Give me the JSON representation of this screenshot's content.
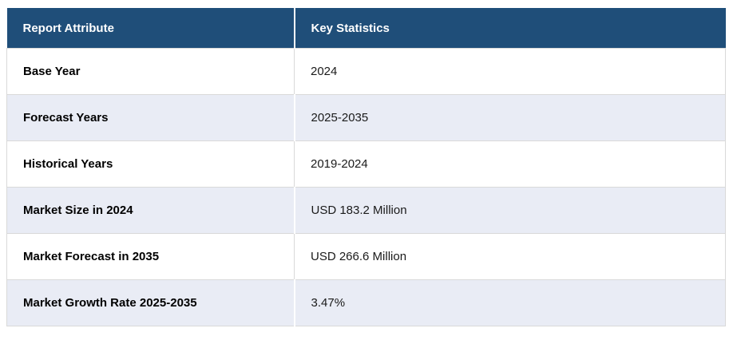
{
  "table": {
    "columns": [
      {
        "label": "Report Attribute"
      },
      {
        "label": "Key Statistics"
      }
    ],
    "rows": [
      {
        "attribute": "Base Year",
        "value": "2024"
      },
      {
        "attribute": "Forecast Years",
        "value": "2025-2035"
      },
      {
        "attribute": "Historical Years",
        "value": "2019-2024"
      },
      {
        "attribute": "Market Size in 2024",
        "value": "USD 183.2 Million"
      },
      {
        "attribute": "Market Forecast in 2035",
        "value": "USD 266.6 Million"
      },
      {
        "attribute": "Market Growth Rate 2025-2035",
        "value": "3.47%"
      }
    ],
    "colors": {
      "header_bg": "#1f4e79",
      "header_text": "#ffffff",
      "row_bg": "#ffffff",
      "row_alt_bg": "#e9ecf5",
      "border": "#d9d9d9",
      "attribute_text": "#000000",
      "value_text": "#1a1a1a"
    }
  },
  "chart_data": {
    "type": "table",
    "title": "Report Attribute / Key Statistics",
    "columns": [
      "Report Attribute",
      "Key Statistics"
    ],
    "rows": [
      [
        "Base Year",
        "2024"
      ],
      [
        "Forecast Years",
        "2025-2035"
      ],
      [
        "Historical Years",
        "2019-2024"
      ],
      [
        "Market Size in 2024",
        "USD 183.2 Million"
      ],
      [
        "Market Forecast in 2035",
        "USD 266.6 Million"
      ],
      [
        "Market Growth Rate 2025-2035",
        "3.47%"
      ]
    ]
  }
}
